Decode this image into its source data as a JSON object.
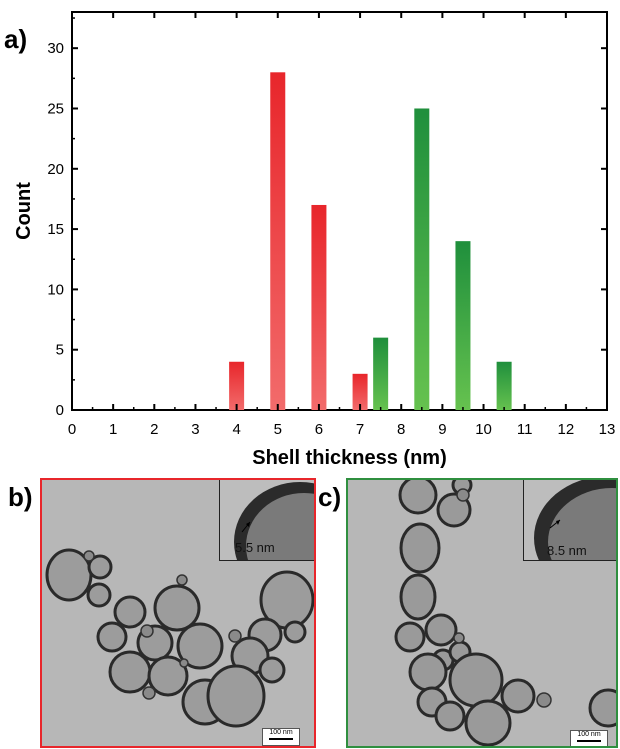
{
  "chart_data": {
    "type": "bar",
    "xlabel": "Shell thickness (nm)",
    "ylabel": "Count",
    "xlim": [
      0,
      13
    ],
    "ylim": [
      0,
      33
    ],
    "xticks": [
      "0",
      "1",
      "2",
      "3",
      "4",
      "5",
      "6",
      "7",
      "8",
      "9",
      "10",
      "11",
      "12",
      "13"
    ],
    "yticks": [
      "0",
      "5",
      "10",
      "15",
      "20",
      "25",
      "30"
    ],
    "grid": false,
    "series": [
      {
        "color": "#e8262b",
        "x": [
          4,
          5,
          6,
          7
        ],
        "values": [
          4,
          28,
          17,
          3
        ]
      },
      {
        "color": "#2fa43f",
        "x": [
          7.5,
          8.5,
          9.5,
          10.5
        ],
        "values": [
          6,
          25,
          14,
          4
        ]
      }
    ]
  },
  "panels": {
    "a_label": "a)",
    "b_label": "b)",
    "c_label": "c)",
    "b_inset_text": "5.5 nm",
    "c_inset_text": "8.5 nm",
    "b_scalebar": "100 nm",
    "c_scalebar": "100 nm",
    "b_border_color": "#e8262b",
    "c_border_color": "#2f8f3f"
  }
}
